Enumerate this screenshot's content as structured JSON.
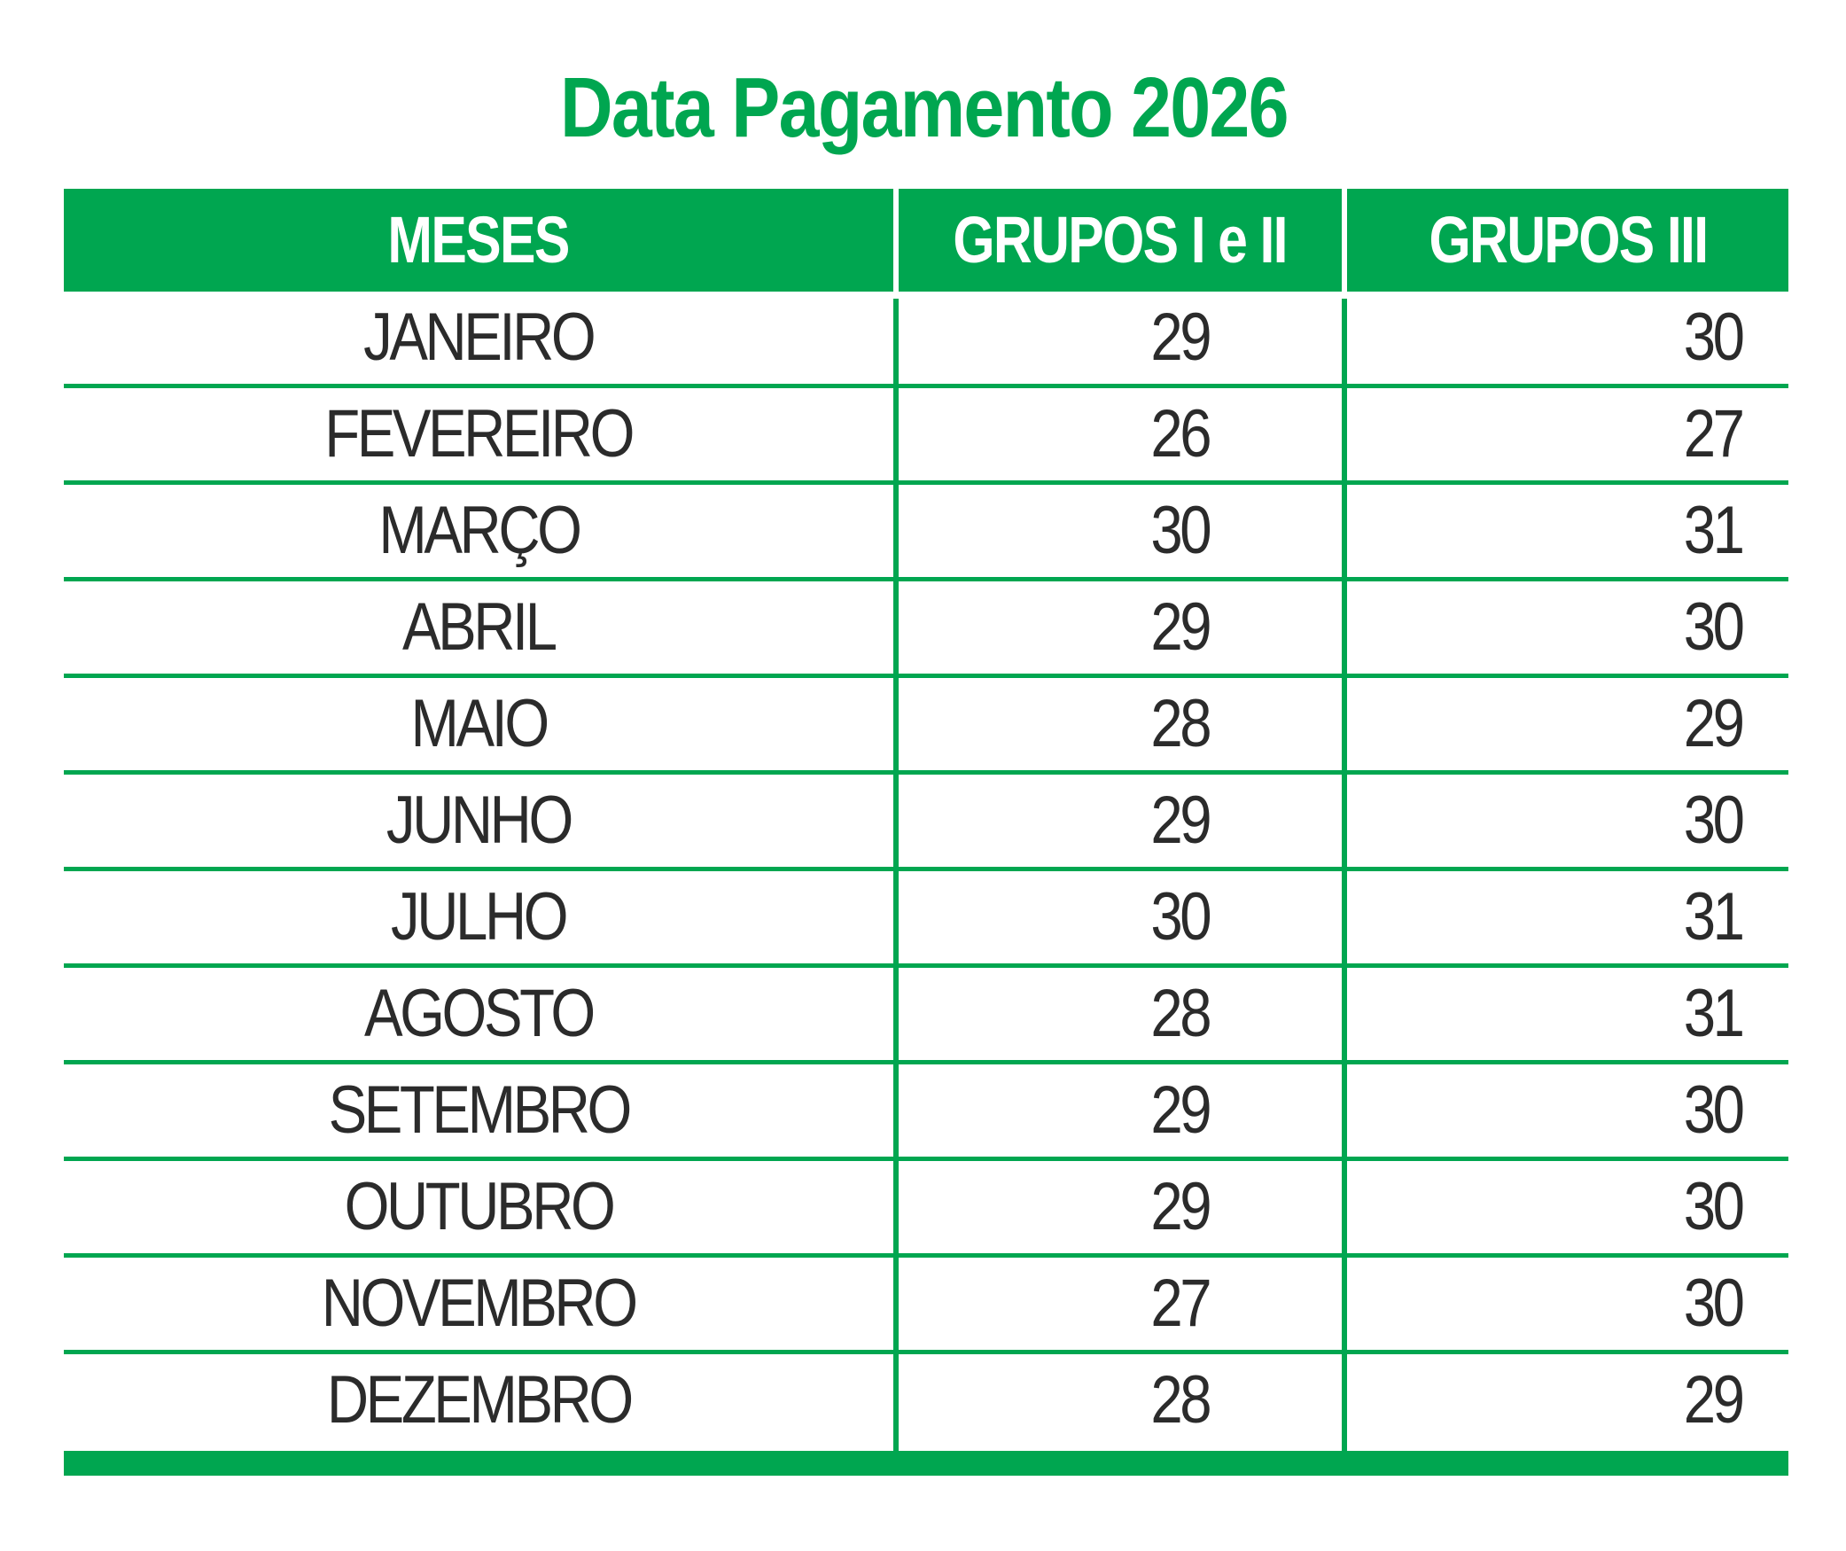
{
  "title": "Data Pagamento 2026",
  "colors": {
    "accent": "#00a650",
    "text": "#2b2b2b",
    "header_text": "#ffffff"
  },
  "table": {
    "headers": [
      "MESES",
      "GRUPOS I e II",
      "GRUPOS III"
    ],
    "rows": [
      {
        "month": "JANEIRO",
        "g12": "29",
        "g3": "30"
      },
      {
        "month": "FEVEREIRO",
        "g12": "26",
        "g3": "27"
      },
      {
        "month": "MARÇO",
        "g12": "30",
        "g3": "31"
      },
      {
        "month": "ABRIL",
        "g12": "29",
        "g3": "30"
      },
      {
        "month": "MAIO",
        "g12": "28",
        "g3": "29"
      },
      {
        "month": "JUNHO",
        "g12": "29",
        "g3": "30"
      },
      {
        "month": "JULHO",
        "g12": "30",
        "g3": "31"
      },
      {
        "month": "AGOSTO",
        "g12": "28",
        "g3": "31"
      },
      {
        "month": "SETEMBRO",
        "g12": "29",
        "g3": "30"
      },
      {
        "month": "OUTUBRO",
        "g12": "29",
        "g3": "30"
      },
      {
        "month": "NOVEMBRO",
        "g12": "27",
        "g3": "30"
      },
      {
        "month": "DEZEMBRO",
        "g12": "28",
        "g3": "29"
      }
    ]
  }
}
